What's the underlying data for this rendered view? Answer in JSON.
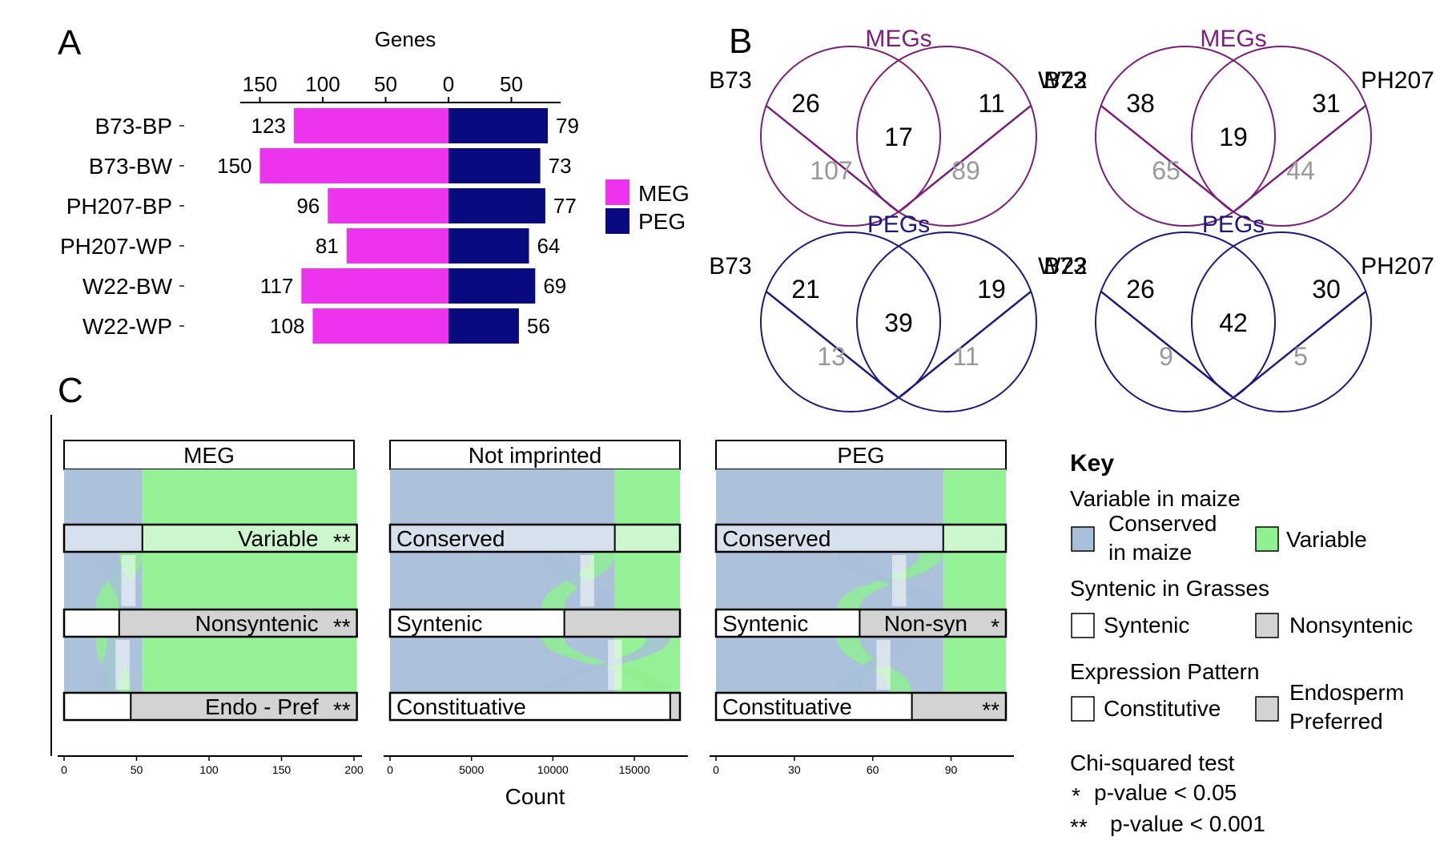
{
  "panels": {
    "a": "A",
    "b": "B",
    "c": "C"
  },
  "panel_a": {
    "x_title": "Genes",
    "legend": [
      {
        "label": "MEG",
        "color": "#EE33EE"
      },
      {
        "label": "PEG",
        "color": "#0A0A80"
      }
    ]
  },
  "chart_data": [
    {
      "type": "bar",
      "title": "Genes",
      "orientation": "horizontal-diverging",
      "categories": [
        "B73-BP",
        "B73-BW",
        "PH207-BP",
        "PH207-WP",
        "W22-BW",
        "W22-WP"
      ],
      "x_ticks": [
        "150",
        "100",
        "50",
        "0",
        "50"
      ],
      "series": [
        {
          "name": "MEG",
          "color": "#EE33EE",
          "direction": "left",
          "values": [
            123,
            150,
            96,
            81,
            117,
            108
          ]
        },
        {
          "name": "PEG",
          "color": "#0A0A80",
          "direction": "right",
          "values": [
            79,
            73,
            77,
            64,
            69,
            56
          ]
        }
      ]
    },
    {
      "type": "alluvial",
      "x_title": "Count",
      "facets": [
        {
          "name": "MEG",
          "x_ticks": [
            "0",
            "50",
            "100",
            "150",
            "200"
          ],
          "x_max": 200,
          "total": 202,
          "axes": [
            {
              "label": "Variable",
              "stars": "**",
              "split": 54,
              "left_label": "",
              "right_label": "Variable"
            },
            {
              "label": "Nonsyntenic",
              "stars": "**",
              "split": 38,
              "left_label": "",
              "right_label": "Nonsyntenic"
            },
            {
              "label": "Endo - Pref",
              "stars": "**",
              "split": 46,
              "left_label": "",
              "right_label": "Endo - Pref"
            }
          ]
        },
        {
          "name": "Not imprinted",
          "x_ticks": [
            "0",
            "5000",
            "10000",
            "15000"
          ],
          "x_max": 17800,
          "total": 17800,
          "axes": [
            {
              "label": "Conserved",
              "stars": "",
              "split": 13800,
              "left_label": "Conserved",
              "right_label": ""
            },
            {
              "label": "Syntenic",
              "stars": "",
              "split": 10700,
              "left_label": "Syntenic",
              "right_label": ""
            },
            {
              "label": "Constituative",
              "stars": "",
              "split": 17200,
              "left_label": "Constituative",
              "right_label": ""
            }
          ]
        },
        {
          "name": "PEG",
          "x_ticks": [
            "0",
            "30",
            "60",
            "90"
          ],
          "x_max": 111,
          "total": 111,
          "axes": [
            {
              "label": "Conserved",
              "stars": "",
              "split": 87,
              "left_label": "Conserved",
              "right_label": ""
            },
            {
              "label": "Non-syn",
              "stars": "*",
              "split": 55,
              "left_label": "Syntenic",
              "right_label": "Non-syn"
            },
            {
              "label": "Constituative",
              "stars": "**",
              "split": 75,
              "left_label": "Constituative",
              "right_label": ""
            }
          ]
        }
      ]
    }
  ],
  "panel_b": {
    "venns": [
      {
        "title": "MEGs",
        "left": "B73",
        "right": "W22",
        "color": "#7B1F7B",
        "a_only": "26",
        "ab": "17",
        "b_only": "11",
        "a_grey": "107",
        "b_grey": "89"
      },
      {
        "title": "MEGs",
        "left": "B73",
        "right": "PH207",
        "color": "#7B1F7B",
        "a_only": "38",
        "ab": "19",
        "b_only": "31",
        "a_grey": "65",
        "b_grey": "44"
      },
      {
        "title": "PEGs",
        "left": "B73",
        "right": "W22",
        "color": "#1A1A80",
        "a_only": "21",
        "ab": "39",
        "b_only": "19",
        "a_grey": "13",
        "b_grey": "11"
      },
      {
        "title": "PEGs",
        "left": "B73",
        "right": "PH207",
        "color": "#1A1A80",
        "a_only": "26",
        "ab": "42",
        "b_only": "30",
        "a_grey": "9",
        "b_grey": "5"
      }
    ]
  },
  "key": {
    "title": "Key",
    "var_heading": "Variable in maize",
    "conserved_line1": "Conserved",
    "conserved_line2": "in maize",
    "variable": "Variable",
    "syn_heading": "Syntenic in Grasses",
    "syntenic": "Syntenic",
    "nonsyntenic": "Nonsyntenic",
    "expr_heading": "Expression Pattern",
    "constitutive": "Constitutive",
    "endo_line1": "Endosperm",
    "endo_line2": "Preferred",
    "chi_heading": "Chi-squared test",
    "p1_star": "*",
    "p1_text": "p-value < 0.05",
    "p2_star": "**",
    "p2_text": "p-value < 0.001"
  },
  "colors": {
    "meg": "#EE33EE",
    "peg": "#0A0A80",
    "conserved": "#A7BFD8",
    "variable": "#8FF08F",
    "nonsyntenic": "#D3D3D3"
  }
}
